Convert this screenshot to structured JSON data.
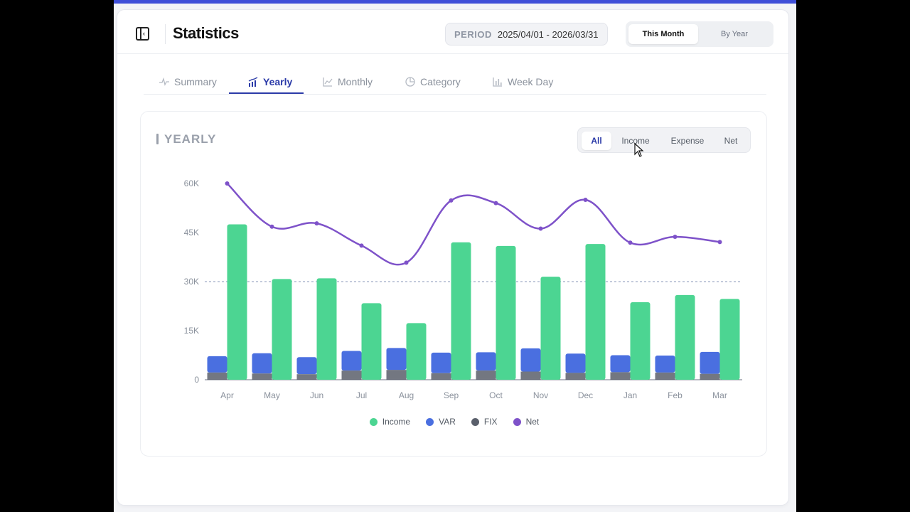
{
  "header": {
    "title": "Statistics",
    "period_label": "PERIOD",
    "period_value": "2025/04/01 - 2026/03/31",
    "modes": [
      "This Month",
      "By Year"
    ],
    "active_mode": "This Month"
  },
  "tabs": [
    {
      "label": "Summary",
      "icon": "pulse-icon"
    },
    {
      "label": "Yearly",
      "icon": "bar-trend-icon"
    },
    {
      "label": "Monthly",
      "icon": "line-chart-icon"
    },
    {
      "label": "Category",
      "icon": "pie-chart-icon"
    },
    {
      "label": "Week Day",
      "icon": "bar-chart-icon"
    }
  ],
  "active_tab": "Yearly",
  "panel": {
    "title": "YEARLY",
    "filters": [
      "All",
      "Income",
      "Expense",
      "Net"
    ],
    "active_filter": "All"
  },
  "colors": {
    "income": "#4cd592",
    "var": "#4a6fe0",
    "fix": "#5a5f6b",
    "net": "#7e52c9",
    "accent": "#2b3aa8"
  },
  "chart_data": {
    "type": "bar",
    "categories": [
      "Apr",
      "May",
      "Jun",
      "Jul",
      "Aug",
      "Sep",
      "Oct",
      "Nov",
      "Dec",
      "Jan",
      "Feb",
      "Mar"
    ],
    "y_ticks": [
      "0",
      "15K",
      "30K",
      "45K",
      "60K"
    ],
    "ylim": [
      0,
      60000
    ],
    "reference_line": 30000,
    "series": [
      {
        "name": "Income",
        "type": "bar",
        "values": [
          47500,
          30800,
          31000,
          23400,
          17300,
          42000,
          40900,
          31500,
          41500,
          23700,
          25900,
          24700
        ]
      },
      {
        "name": "VAR",
        "type": "stacked-bar",
        "values": [
          5000,
          6200,
          5200,
          6000,
          6700,
          6300,
          5600,
          7100,
          5900,
          5200,
          5200,
          6700
        ]
      },
      {
        "name": "FIX",
        "type": "stacked-bar",
        "values": [
          2200,
          1900,
          1700,
          2800,
          3000,
          2000,
          2800,
          2500,
          2100,
          2300,
          2200,
          1800
        ]
      },
      {
        "name": "Net",
        "type": "line",
        "values": [
          60000,
          46800,
          47800,
          41000,
          35800,
          54800,
          54000,
          46200,
          55000,
          41900,
          43700,
          42100
        ]
      }
    ],
    "legend": [
      "Income",
      "VAR",
      "FIX",
      "Net"
    ],
    "legend_position": "bottom",
    "grid": false
  }
}
